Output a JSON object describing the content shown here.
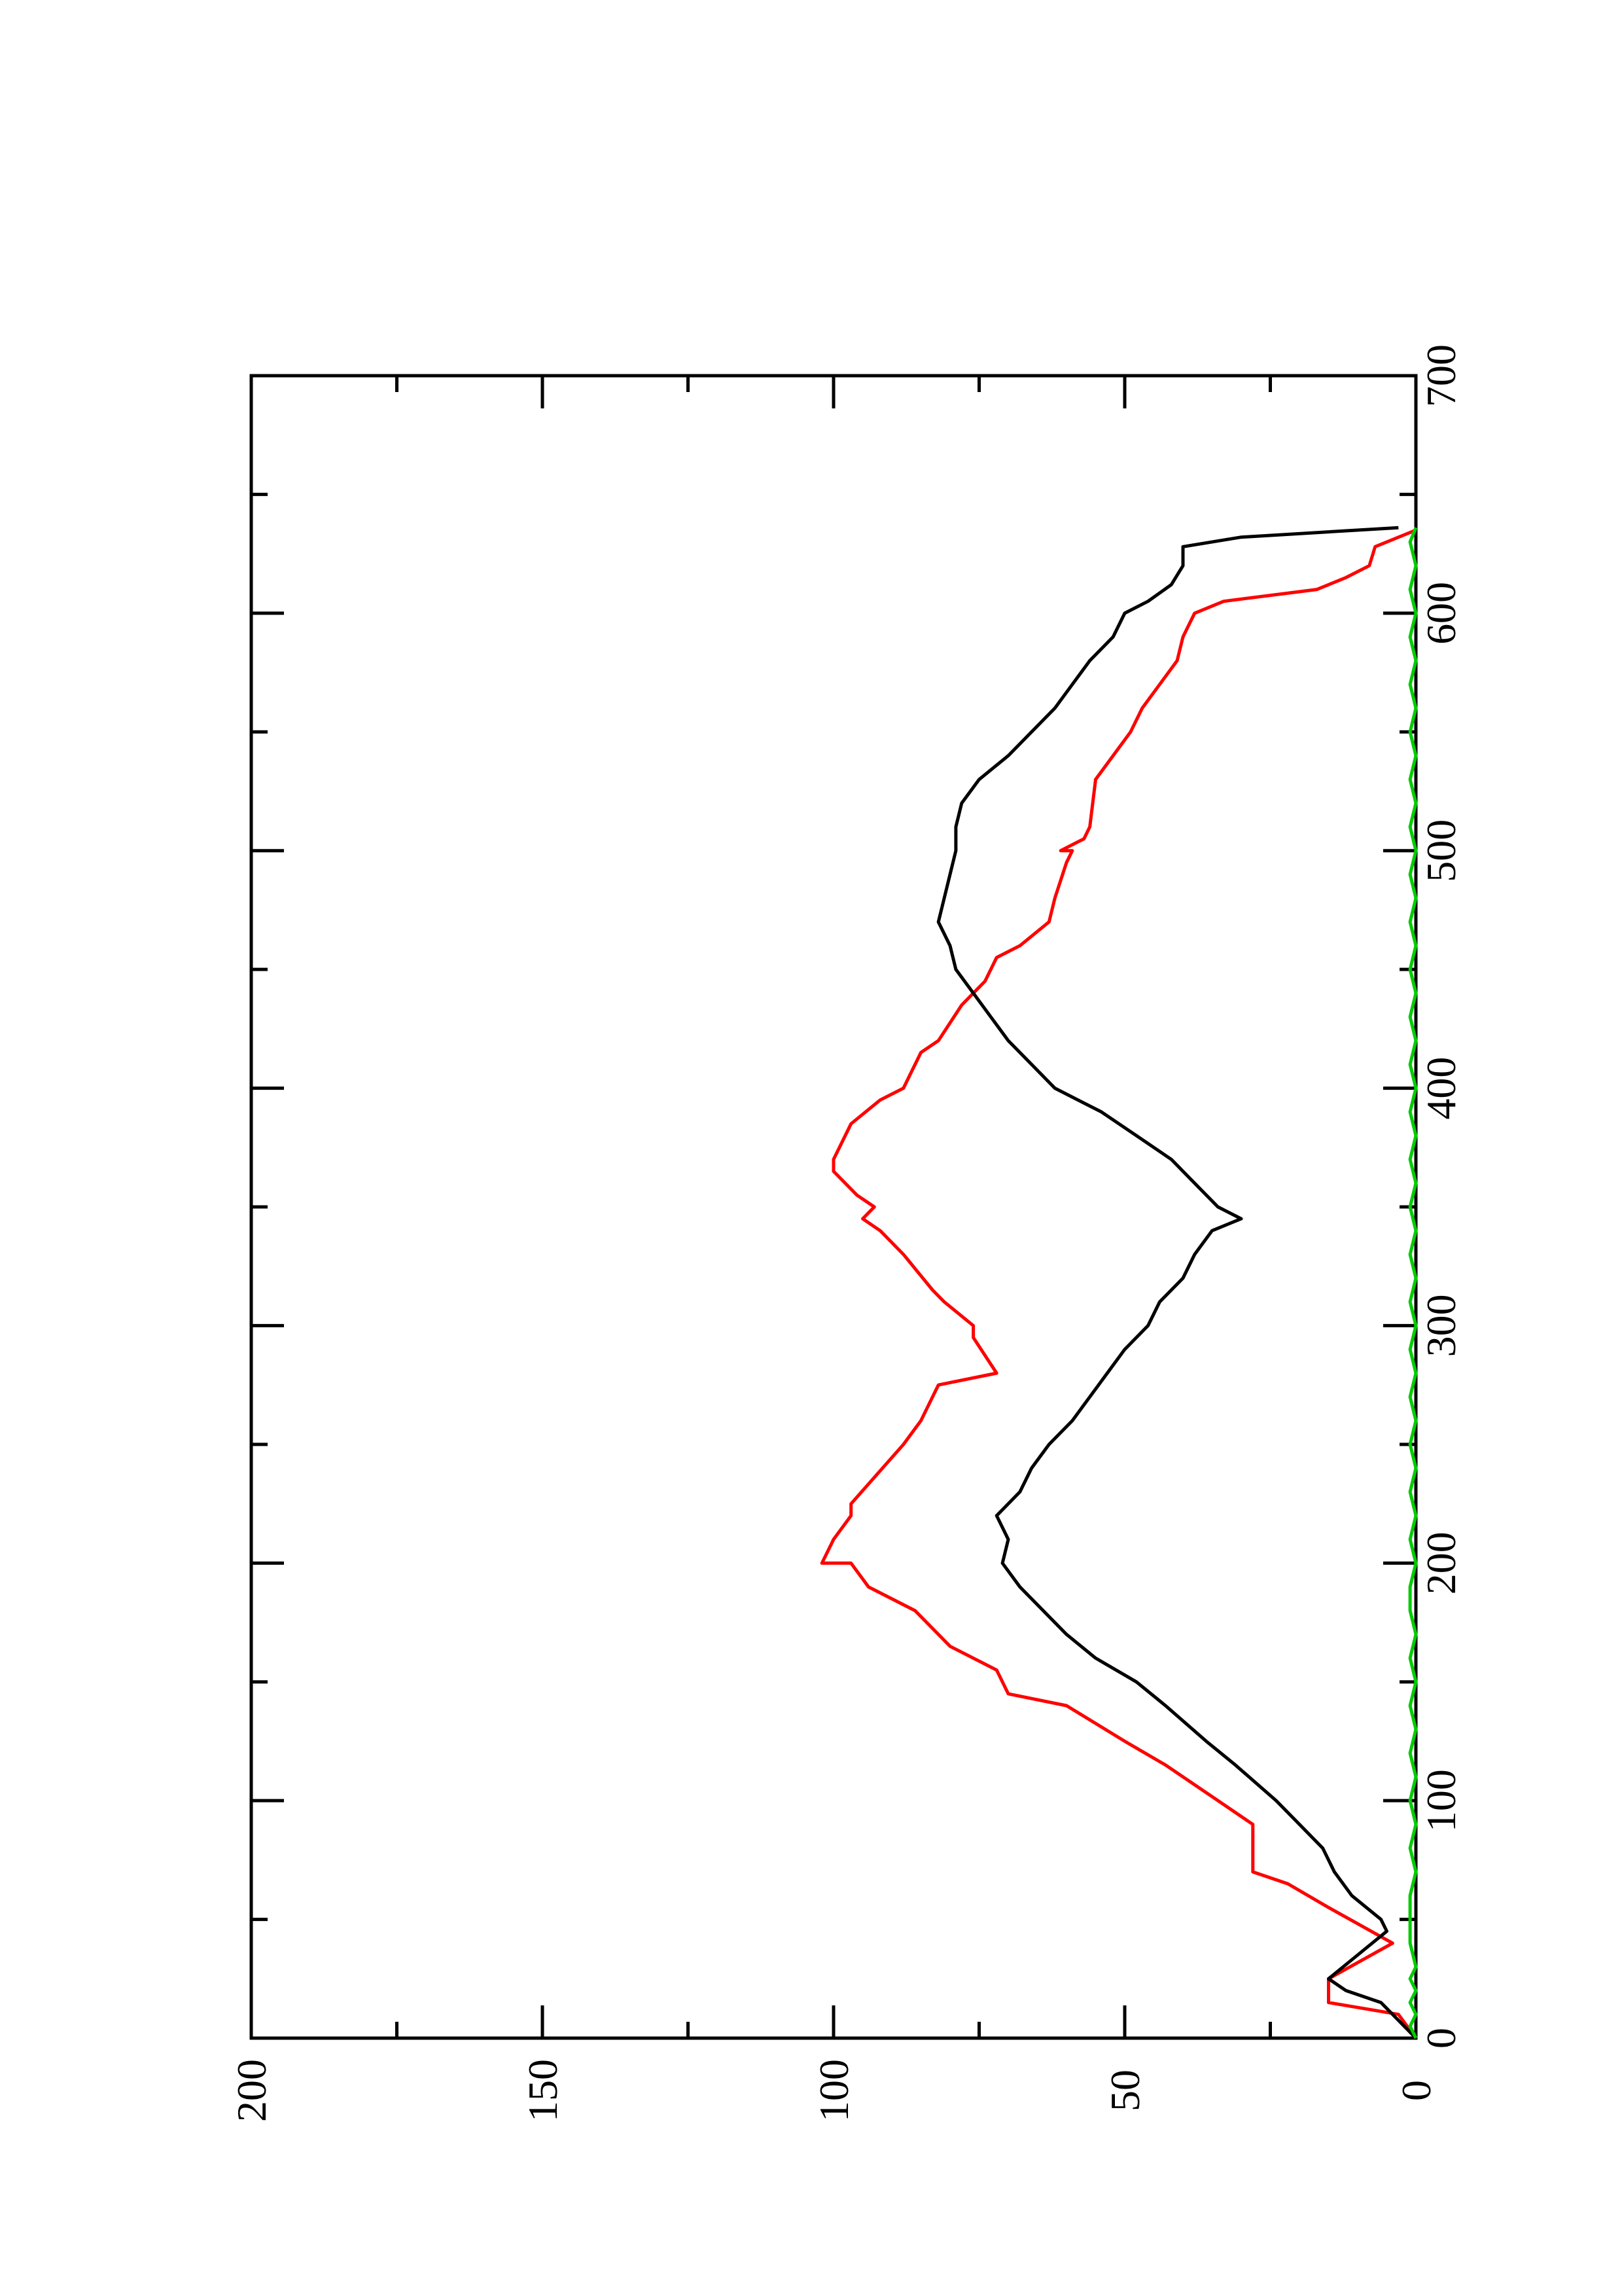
{
  "chart_data": {
    "type": "line",
    "orientation": "rotated-90",
    "title": "",
    "xlabel": "",
    "ylabel": "",
    "xlim": [
      0,
      700
    ],
    "ylim": [
      0,
      200
    ],
    "xticks": [
      0,
      100,
      200,
      300,
      400,
      500,
      600,
      700
    ],
    "yticks": [
      0,
      50,
      100,
      150,
      200
    ],
    "xminor": [
      50,
      150,
      250,
      350,
      450,
      550,
      650
    ],
    "yminor": [
      25,
      75,
      125,
      175
    ],
    "grid": false,
    "legend": "none",
    "series": [
      {
        "color": "#ff0000",
        "points": [
          [
            0,
            0
          ],
          [
            10,
            3
          ],
          [
            15,
            15
          ],
          [
            25,
            15
          ],
          [
            40,
            4
          ],
          [
            55,
            15
          ],
          [
            65,
            22
          ],
          [
            70,
            28
          ],
          [
            90,
            28
          ],
          [
            100,
            34
          ],
          [
            115,
            43
          ],
          [
            125,
            50
          ],
          [
            140,
            60
          ],
          [
            145,
            70
          ],
          [
            155,
            72
          ],
          [
            165,
            80
          ],
          [
            175,
            84
          ],
          [
            180,
            86
          ],
          [
            190,
            94
          ],
          [
            200,
            97
          ],
          [
            200,
            102
          ],
          [
            210,
            100
          ],
          [
            220,
            97
          ],
          [
            225,
            97
          ],
          [
            250,
            88
          ],
          [
            260,
            85
          ],
          [
            275,
            82
          ],
          [
            280,
            72
          ],
          [
            295,
            76
          ],
          [
            300,
            76
          ],
          [
            310,
            81
          ],
          [
            315,
            83
          ],
          [
            330,
            88
          ],
          [
            340,
            92
          ],
          [
            345,
            95
          ],
          [
            350,
            93
          ],
          [
            355,
            96
          ],
          [
            365,
            100
          ],
          [
            370,
            100
          ],
          [
            385,
            97
          ],
          [
            395,
            92
          ],
          [
            400,
            88
          ],
          [
            405,
            87
          ],
          [
            415,
            85
          ],
          [
            420,
            82
          ],
          [
            435,
            78
          ],
          [
            445,
            74
          ],
          [
            455,
            72
          ],
          [
            460,
            68
          ],
          [
            470,
            63
          ],
          [
            480,
            62
          ],
          [
            495,
            60
          ],
          [
            500,
            59
          ],
          [
            500,
            61
          ],
          [
            505,
            57
          ],
          [
            510,
            56
          ],
          [
            530,
            55
          ],
          [
            550,
            49
          ],
          [
            560,
            47
          ],
          [
            570,
            44
          ],
          [
            580,
            41
          ],
          [
            590,
            40
          ],
          [
            600,
            38
          ],
          [
            605,
            33
          ],
          [
            610,
            17
          ],
          [
            615,
            12
          ],
          [
            620,
            8
          ],
          [
            628,
            7
          ],
          [
            635,
            0
          ]
        ]
      },
      {
        "color": "#000000",
        "points": [
          [
            0,
            0
          ],
          [
            5,
            2
          ],
          [
            15,
            6
          ],
          [
            20,
            12
          ],
          [
            25,
            15
          ],
          [
            35,
            10
          ],
          [
            45,
            5
          ],
          [
            50,
            6
          ],
          [
            60,
            11
          ],
          [
            70,
            14
          ],
          [
            80,
            16
          ],
          [
            90,
            20
          ],
          [
            100,
            24
          ],
          [
            115,
            31
          ],
          [
            125,
            36
          ],
          [
            140,
            43
          ],
          [
            150,
            48
          ],
          [
            160,
            55
          ],
          [
            170,
            60
          ],
          [
            175,
            62
          ],
          [
            180,
            64
          ],
          [
            190,
            68
          ],
          [
            200,
            71
          ],
          [
            210,
            70
          ],
          [
            220,
            72
          ],
          [
            230,
            68
          ],
          [
            240,
            66
          ],
          [
            250,
            63
          ],
          [
            260,
            59
          ],
          [
            270,
            56
          ],
          [
            280,
            53
          ],
          [
            290,
            50
          ],
          [
            300,
            46
          ],
          [
            310,
            44
          ],
          [
            320,
            40
          ],
          [
            330,
            38
          ],
          [
            340,
            35
          ],
          [
            345,
            30
          ],
          [
            350,
            34
          ],
          [
            360,
            38
          ],
          [
            370,
            42
          ],
          [
            380,
            48
          ],
          [
            390,
            54
          ],
          [
            400,
            62
          ],
          [
            410,
            66
          ],
          [
            420,
            70
          ],
          [
            430,
            73
          ],
          [
            440,
            76
          ],
          [
            450,
            79
          ],
          [
            460,
            80
          ],
          [
            470,
            82
          ],
          [
            480,
            81
          ],
          [
            490,
            80
          ],
          [
            500,
            79
          ],
          [
            510,
            79
          ],
          [
            520,
            78
          ],
          [
            530,
            75
          ],
          [
            540,
            70
          ],
          [
            550,
            66
          ],
          [
            560,
            62
          ],
          [
            570,
            59
          ],
          [
            580,
            56
          ],
          [
            590,
            52
          ],
          [
            600,
            50
          ],
          [
            605,
            46
          ],
          [
            612,
            42
          ],
          [
            620,
            40
          ],
          [
            628,
            40
          ],
          [
            632,
            30
          ],
          [
            636,
            3
          ]
        ]
      },
      {
        "color": "#00cc00",
        "points": [
          [
            0,
            0
          ],
          [
            5,
            1
          ],
          [
            10,
            0
          ],
          [
            15,
            1
          ],
          [
            20,
            0
          ],
          [
            25,
            1
          ],
          [
            30,
            0
          ],
          [
            40,
            1
          ],
          [
            50,
            1
          ],
          [
            60,
            1
          ],
          [
            70,
            0
          ],
          [
            80,
            1
          ],
          [
            90,
            0
          ],
          [
            100,
            1
          ],
          [
            110,
            0
          ],
          [
            120,
            1
          ],
          [
            130,
            0
          ],
          [
            140,
            1
          ],
          [
            150,
            0
          ],
          [
            160,
            1
          ],
          [
            170,
            0
          ],
          [
            180,
            1
          ],
          [
            190,
            1
          ],
          [
            200,
            0
          ],
          [
            210,
            1
          ],
          [
            220,
            0
          ],
          [
            230,
            1
          ],
          [
            240,
            0
          ],
          [
            250,
            1
          ],
          [
            260,
            0
          ],
          [
            270,
            1
          ],
          [
            280,
            0
          ],
          [
            290,
            1
          ],
          [
            300,
            0
          ],
          [
            310,
            1
          ],
          [
            320,
            0
          ],
          [
            330,
            1
          ],
          [
            340,
            0
          ],
          [
            350,
            1
          ],
          [
            360,
            0
          ],
          [
            370,
            1
          ],
          [
            380,
            0
          ],
          [
            390,
            1
          ],
          [
            400,
            0
          ],
          [
            410,
            1
          ],
          [
            420,
            0
          ],
          [
            430,
            1
          ],
          [
            440,
            0
          ],
          [
            450,
            1
          ],
          [
            460,
            0
          ],
          [
            470,
            1
          ],
          [
            480,
            0
          ],
          [
            490,
            1
          ],
          [
            500,
            0
          ],
          [
            510,
            1
          ],
          [
            520,
            0
          ],
          [
            530,
            1
          ],
          [
            540,
            0
          ],
          [
            550,
            1
          ],
          [
            560,
            0
          ],
          [
            570,
            1
          ],
          [
            580,
            0
          ],
          [
            590,
            1
          ],
          [
            600,
            0
          ],
          [
            610,
            1
          ],
          [
            620,
            0
          ],
          [
            630,
            1
          ],
          [
            636,
            0
          ]
        ]
      }
    ]
  }
}
